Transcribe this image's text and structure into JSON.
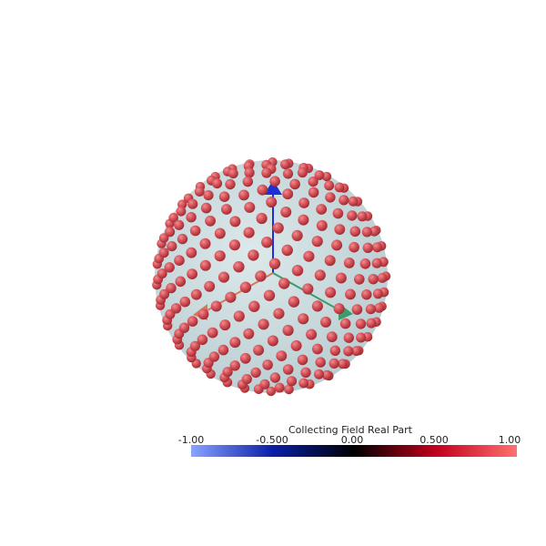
{
  "legend": {
    "title": "Collecting Field Real Part",
    "ticks": [
      "-1.00",
      "-0.500",
      "0.00",
      "0.500",
      "1.00"
    ],
    "range": [
      -1.0,
      1.0
    ],
    "colormap": [
      "#8aa3ff",
      "#0a1fa8",
      "#000000",
      "#c0001c",
      "#ff7070"
    ]
  },
  "scene": {
    "sphere_color": "#c8dadd",
    "point_color": "#d04850",
    "axis_z_color": "#1f2fd6",
    "axis_y_color": "#3a9d6a",
    "axis_x_color": "#d8785a"
  }
}
